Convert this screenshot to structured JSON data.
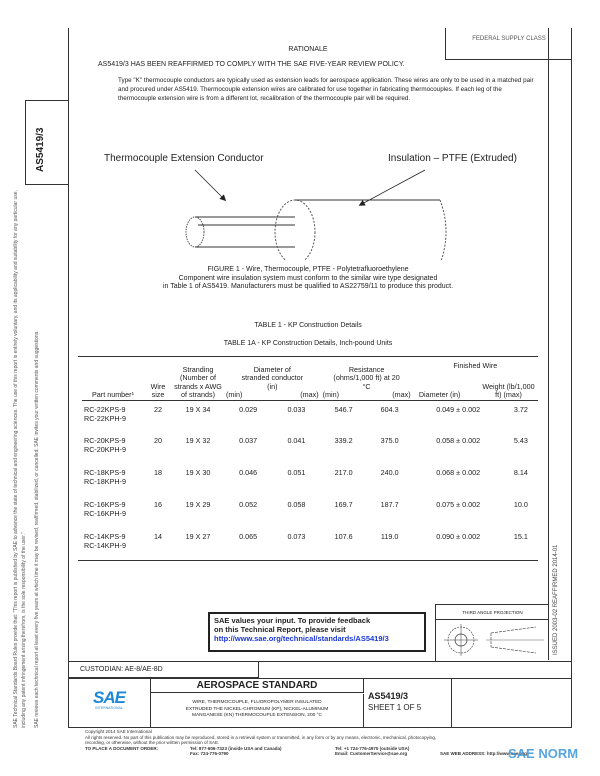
{
  "side": {
    "doc_id": "AS5419/3",
    "margin_line1": "SAE Technical Standards Board Rules provide that: \"This report is published by SAE to advance the state of technical and engineering sciences. The use of this report is entirely voluntary, and its applicability and suitability for any particular use, including any patent infringement arising therefrom, is the sole responsibility of the user.\"",
    "margin_line2": "SAE reviews each technical report at least every five years at which time it may be revised, reaffirmed, stabilized, or cancelled. SAE invites your written comments and suggestions.",
    "right_strip": "ISSUED 2003-02    REAFFIRMED 2014-01"
  },
  "header": {
    "fsc_label": "FEDERAL SUPPLY CLASS"
  },
  "rationale": {
    "title": "RATIONALE",
    "statement": "AS5419/3 HAS BEEN REAFFIRMED TO COMPLY WITH THE SAE FIVE-YEAR REVIEW POLICY.",
    "paragraph": "Type \"K\" thermocouple conductors are typically used as extension leads for aerospace application. These wires are only to be used in a matched pair and procured under AS5419. Thermocouple extension wires are calibrated for use together in fabricating thermocouples. If each leg of the thermocouple extension wire is from a different lot, recalibration of the thermocouple pair will be required."
  },
  "figure": {
    "label_conductor": "Thermocouple Extension Conductor",
    "label_insulation": "Insulation – PTFE (Extruded)",
    "caption": "FIGURE 1 - Wire, Thermocouple, PTFE - Polytetrafluoroethylene",
    "note1": "Component wire insulation system must conform to the similar wire type designated",
    "note2": "in Table 1 of AS5419.  Manufacturers must be qualified to AS22759/11 to produce this product."
  },
  "table": {
    "title": "TABLE 1 - KP Construction Details",
    "subtitle": "TABLE 1A - KP Construction Details, Inch-pound Units",
    "headers": {
      "part": "Part number¹",
      "wire": "Wire size",
      "stranding": "Stranding (Number of strands x AWG of strands)",
      "diameter": "Diameter of stranded conductor (in)",
      "resistance": "Resistance (ohms/1,000 ft) at 20 °C",
      "min": "(min)",
      "max": "(max)",
      "finished": "Finished Wire",
      "fdiam": "Diameter (in)",
      "weight": "Weight (lb/1,000 ft) (max)"
    },
    "rows": [
      {
        "p1": "RC-22KPS-9",
        "p2": "RC-22KPH-9",
        "size": "22",
        "strand": "19 X 34",
        "dmin": "0.029",
        "dmax": "0.033",
        "rmin": "546.7",
        "rmax": "604.3",
        "fd": "0.049 ± 0.002",
        "w": "3.72"
      },
      {
        "p1": "RC-20KPS-9",
        "p2": "RC-20KPH-9",
        "size": "20",
        "strand": "19 X 32",
        "dmin": "0.037",
        "dmax": "0.041",
        "rmin": "339.2",
        "rmax": "375.0",
        "fd": "0.058 ± 0.002",
        "w": "5.43"
      },
      {
        "p1": "RC-18KPS-9",
        "p2": "RC-18KPH-9",
        "size": "18",
        "strand": "19 X 30",
        "dmin": "0.046",
        "dmax": "0.051",
        "rmin": "217.0",
        "rmax": "240.0",
        "fd": "0.068 ± 0.002",
        "w": "8.14"
      },
      {
        "p1": "RC-16KPS-9",
        "p2": "RC-16KPH-9",
        "size": "16",
        "strand": "19 X 29",
        "dmin": "0.052",
        "dmax": "0.058",
        "rmin": "169.7",
        "rmax": "187.7",
        "fd": "0.075 ± 0.002",
        "w": "10.0"
      },
      {
        "p1": "RC-14KPS-9",
        "p2": "RC-14KPH-9",
        "size": "14",
        "strand": "19 X 27",
        "dmin": "0.065",
        "dmax": "0.073",
        "rmin": "107.6",
        "rmax": "119.0",
        "fd": "0.090 ± 0.002",
        "w": "15.1"
      }
    ]
  },
  "feedback": {
    "line1": "SAE values your input. To provide feedback",
    "line2": "on this Technical Report, please visit",
    "link": "http://www.sae.org/technical/standards/AS5419/3"
  },
  "projection": {
    "label": "THIRD ANGLE PROJECTION"
  },
  "title_block": {
    "custodian": "CUSTODIAN: AE-8/AE-8D",
    "logo_text": "SAE",
    "logo_sub": "INTERNATIONAL",
    "heading": "AEROSPACE STANDARD",
    "desc1": "WIRE, THERMOCOUPLE, FLUOROPOLYMER INSULATED",
    "desc2": "EXTRUDED THE NICKEL-CHROMIUM (KP), NICKEL-ALUMINUM",
    "desc3": "MANGANESE (KN) THERMOCOUPLE EXTENSION, 200 °C",
    "doc": "AS5419/3",
    "sheet": "SHEET 1 OF 5"
  },
  "footer": {
    "copyright": "Copyright 2014 SAE International",
    "rights": "All rights reserved. No part of this publication may be reproduced, stored in a retrieval system or transmitted, in any form or by any means, electronic, mechanical, photocopying,",
    "rights2": "recording, or otherwise, without the prior written permission of SAE.",
    "order": "TO PLACE A DOCUMENT ORDER:",
    "tel1": "Tel: 877-606-7323 (inside USA and Canada)",
    "fax": "Fax: 724-776-0790",
    "tel2": "Tel: +1 724-776-4970 (outside USA)",
    "email": "Email: CustomerService@sae.org",
    "web": "SAE WEB ADDRESS: http://www.sae.org",
    "watermark": "SAE NORM"
  },
  "colors": {
    "sae_blue": "#1e88d8",
    "link": "#1a36d6"
  }
}
